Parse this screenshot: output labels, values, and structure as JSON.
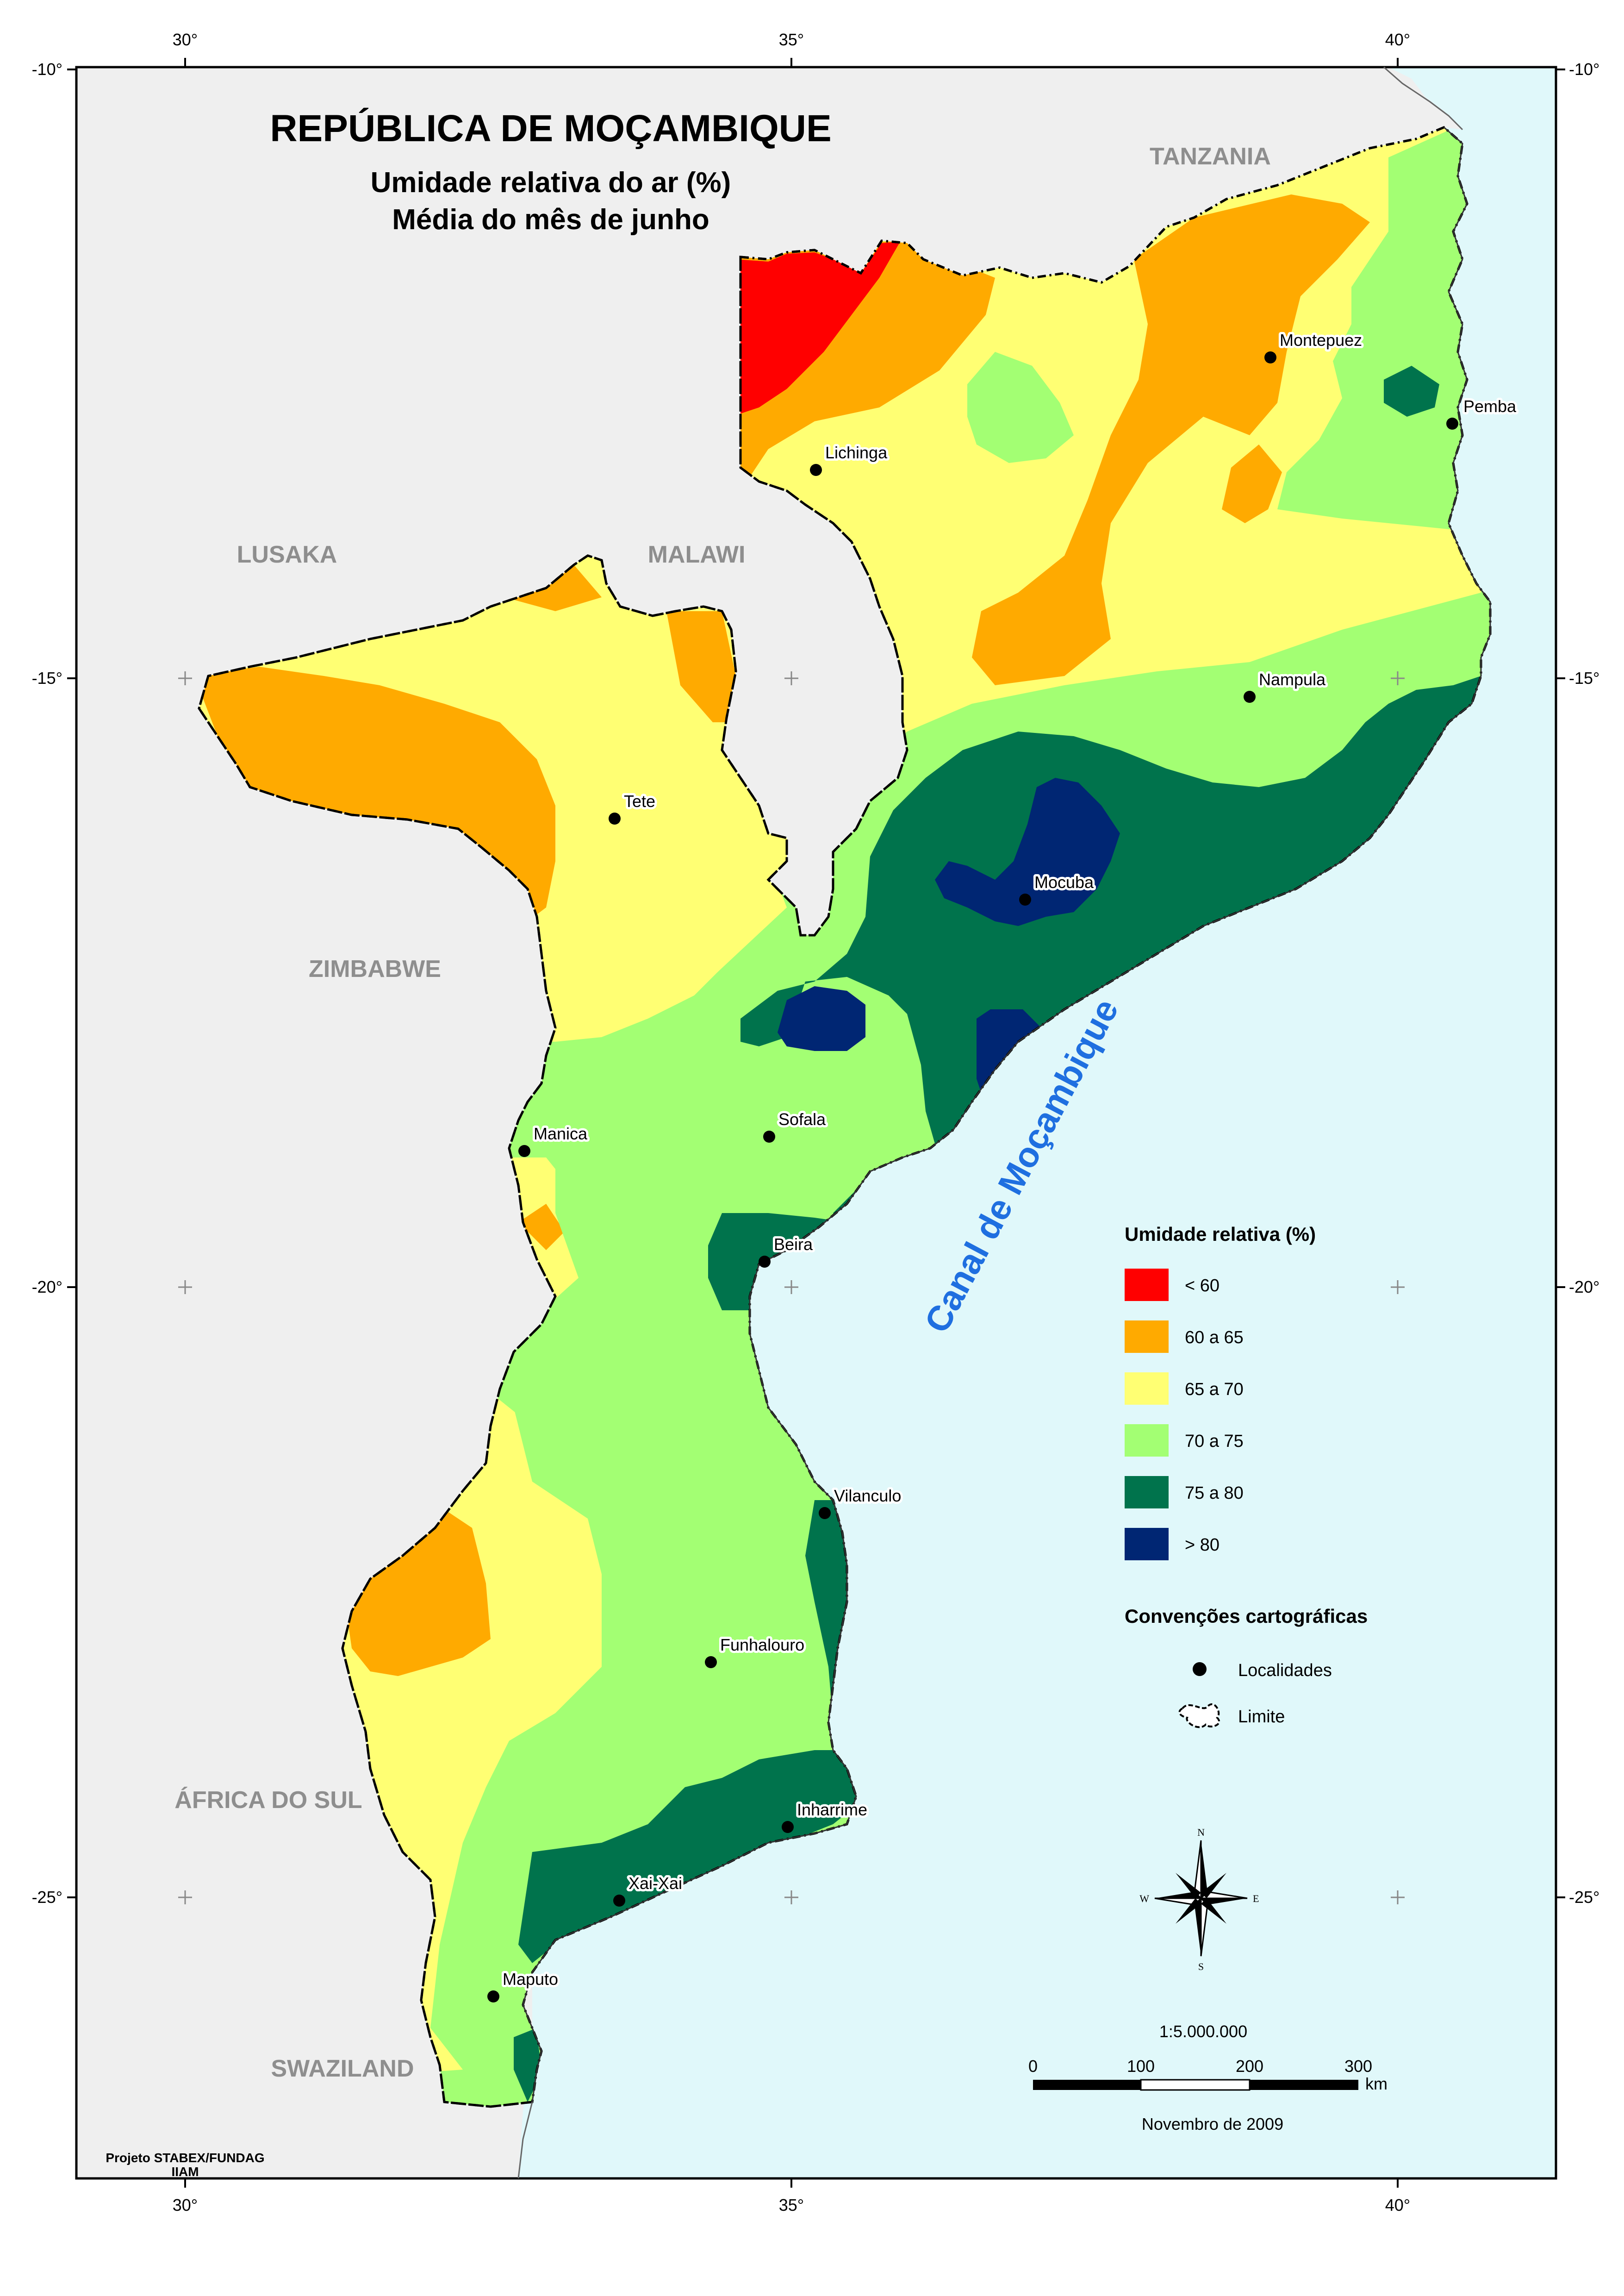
{
  "map": {
    "title": "REPÚBLICA DE MOÇAMBIQUE",
    "subtitle1": "Umidade relativa do ar (%)",
    "subtitle2": "Média do mês de junho",
    "sea_label": "Canal de Moçambique",
    "credit_line1": "Projeto STABEX/FUNDAG",
    "credit_line2": "IIAM",
    "date": "Novembro de 2009",
    "scale_text": "1:5.000.000"
  },
  "axes": {
    "longitude_labels": [
      "30°",
      "35°",
      "40°"
    ],
    "latitude_labels": [
      "-10°",
      "-15°",
      "-20°",
      "-25°"
    ]
  },
  "countries": {
    "tanzania": "TANZANIA",
    "lusaka": "LUSAKA",
    "malawi": "MALAWI",
    "zimbabwe": "ZIMBABWE",
    "south_africa": "ÁFRICA DO SUL",
    "swaziland": "SWAZILAND"
  },
  "cities": [
    {
      "name": "Lichinga"
    },
    {
      "name": "Montepuez"
    },
    {
      "name": "Pemba"
    },
    {
      "name": "Nampula"
    },
    {
      "name": "Tete"
    },
    {
      "name": "Mocuba"
    },
    {
      "name": "Manica"
    },
    {
      "name": "Sofala"
    },
    {
      "name": "Beira"
    },
    {
      "name": "Vilanculo"
    },
    {
      "name": "Funhalouro"
    },
    {
      "name": "Inharrime"
    },
    {
      "name": "Xai-Xai"
    },
    {
      "name": "Maputo"
    }
  ],
  "legend": {
    "title": "Umidade relativa (%)",
    "classes": [
      {
        "label": "< 60",
        "color": "#ff0000"
      },
      {
        "label": "60 a 65",
        "color": "#ffaa00"
      },
      {
        "label": "65 a 70",
        "color": "#ffff73"
      },
      {
        "label": "70 a 75",
        "color": "#a3ff73"
      },
      {
        "label": "75 a 80",
        "color": "#00734c"
      },
      {
        "label": "> 80",
        "color": "#002673"
      }
    ],
    "conventions_title": "Convenções cartográficas",
    "locality_label": "Localidades",
    "boundary_label": "Limite"
  },
  "scale_bar": {
    "ticks": [
      "0",
      "100",
      "200",
      "300"
    ],
    "unit": "km"
  },
  "north_arrow": {
    "n": "N",
    "s": "S",
    "e": "E",
    "w": "W"
  },
  "colors": {
    "sea": "#e0f8fa",
    "land_outside": "#efefef"
  }
}
